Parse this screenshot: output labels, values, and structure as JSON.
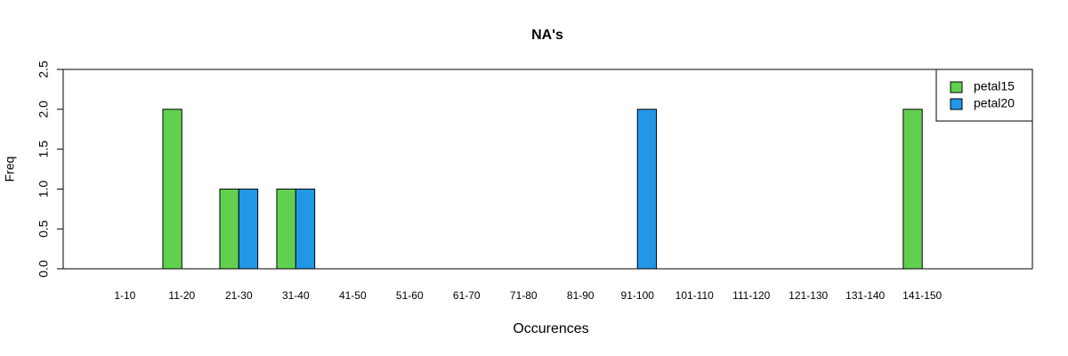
{
  "chart_data": {
    "type": "bar",
    "title": "NA's",
    "x_label": "Occurences",
    "y_label": "Freq",
    "categories": [
      "1-10",
      "11-20",
      "21-30",
      "31-40",
      "41-50",
      "51-60",
      "61-70",
      "71-80",
      "81-90",
      "91-100",
      "101-110",
      "111-120",
      "121-130",
      "131-140",
      "141-150"
    ],
    "series": [
      {
        "name": "petal15",
        "color": "#61D04F",
        "values": [
          0,
          2,
          1,
          1,
          0,
          0,
          0,
          0,
          0,
          0,
          0,
          0,
          0,
          0,
          2
        ]
      },
      {
        "name": "petal20",
        "color": "#2297E6",
        "values": [
          0,
          0,
          1,
          1,
          0,
          0,
          0,
          0,
          0,
          2,
          0,
          0,
          0,
          0,
          0
        ]
      }
    ],
    "ylim": [
      0,
      2.5
    ],
    "yticks": [
      {
        "value": 0,
        "label": "0.0"
      },
      0.5,
      {
        "value": 1,
        "label": "1.0"
      },
      1.5,
      {
        "value": 2,
        "label": "2.0"
      },
      2.5
    ],
    "legend": "topright"
  }
}
